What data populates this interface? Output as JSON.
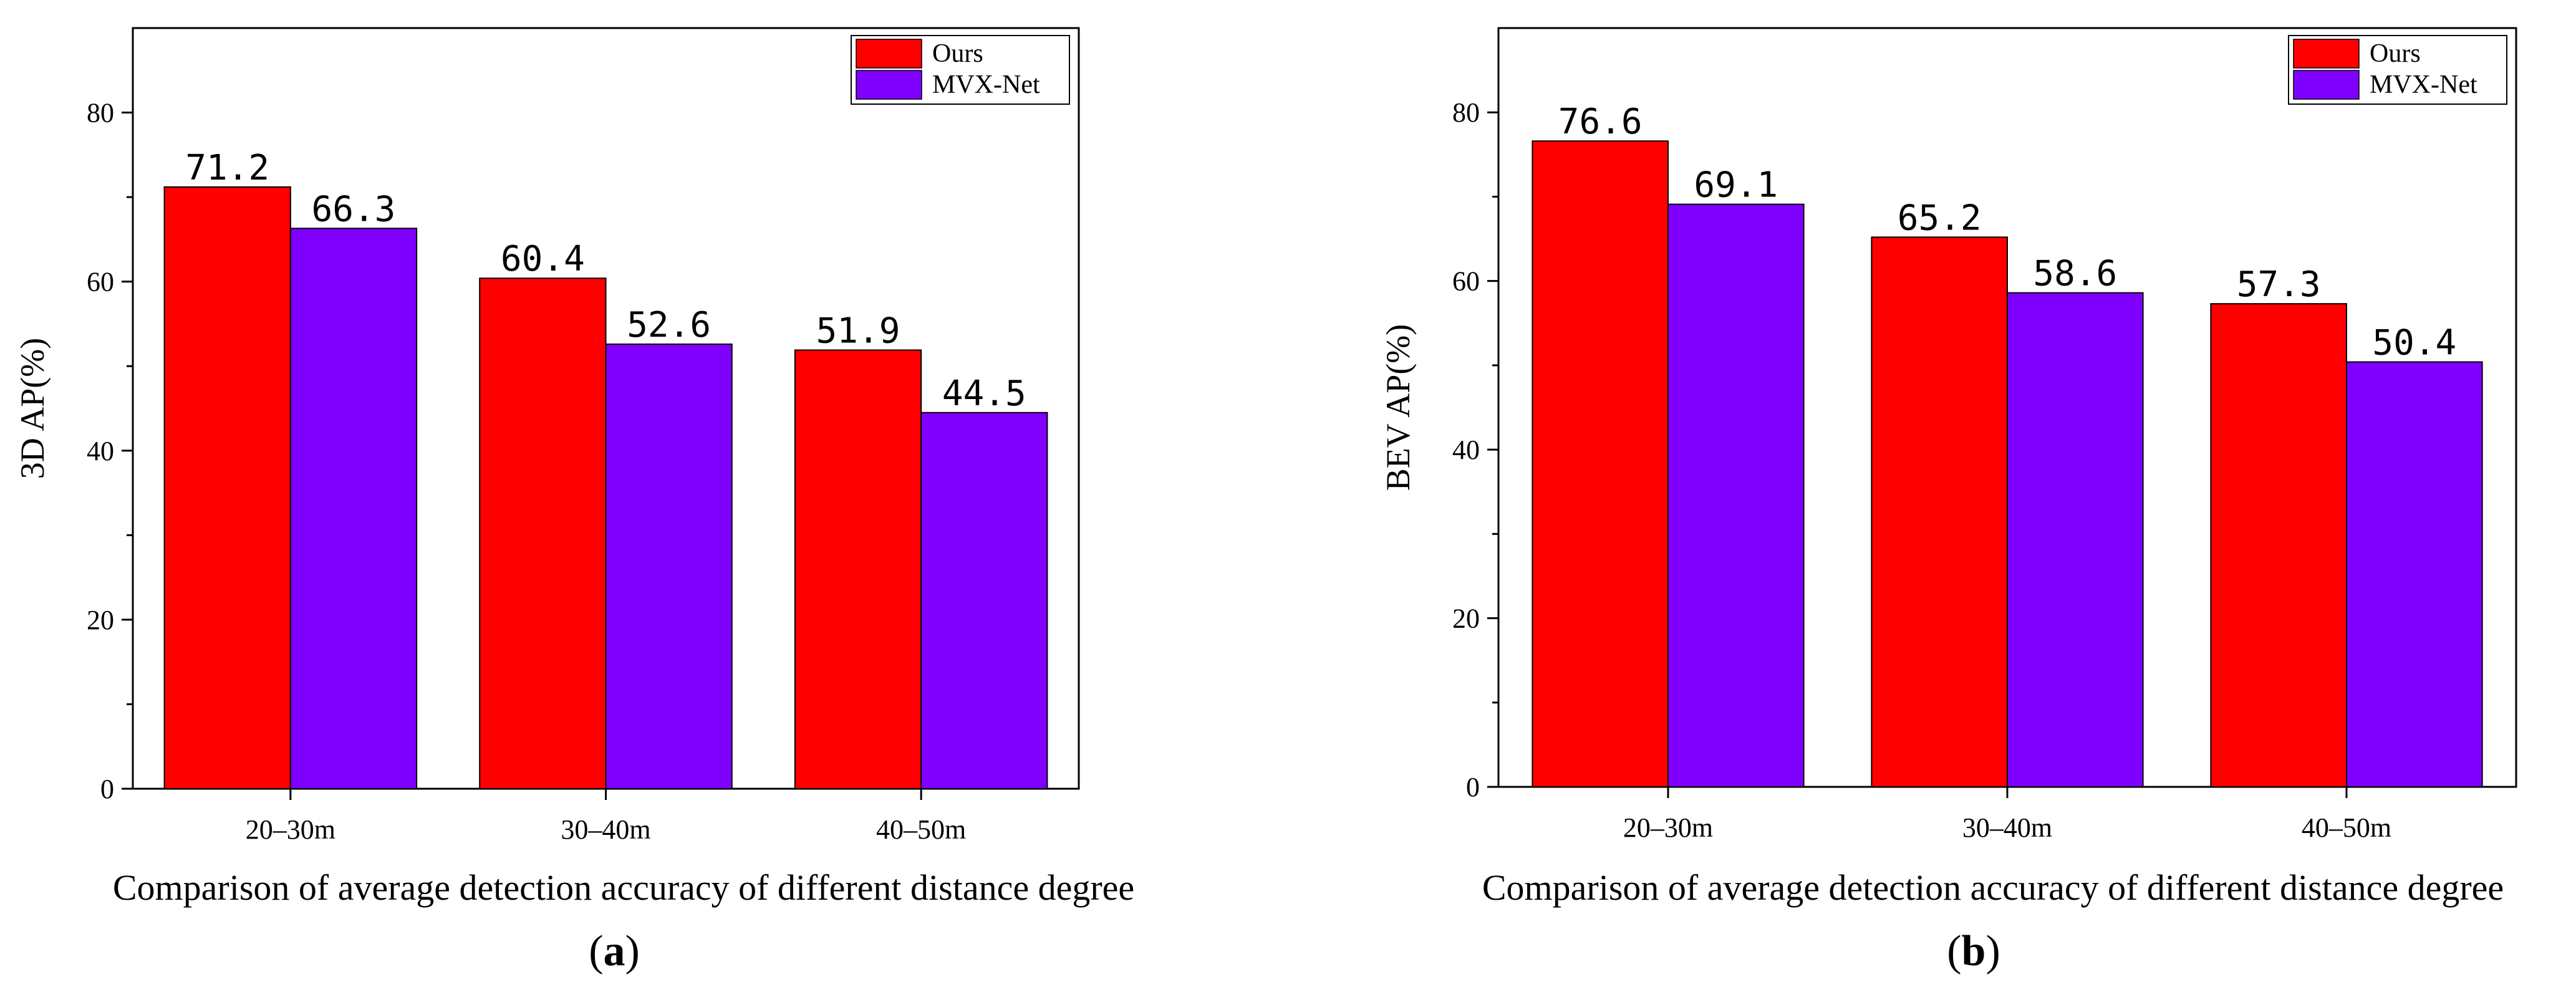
{
  "chart_data": [
    {
      "type": "bar",
      "panel": "(a)",
      "panel_letter": "a",
      "categories": [
        "20–30m",
        "30–40m",
        "40–50m"
      ],
      "series": [
        {
          "name": "Ours",
          "color": "#ff0000",
          "values": [
            71.2,
            60.4,
            51.9
          ]
        },
        {
          "name": "MVX-Net",
          "color": "#7f00ff",
          "values": [
            66.3,
            52.6,
            44.5
          ]
        }
      ],
      "value_labels": [
        [
          "71.2",
          "60.4",
          "51.9"
        ],
        [
          "66.3",
          "52.6",
          "44.5"
        ]
      ],
      "ylabel": "3D AP(%)",
      "xlabel": "Comparison of average detection accuracy of different distance degree",
      "ylim": [
        0,
        90
      ],
      "yticks": [
        0,
        20,
        40,
        60,
        80
      ],
      "ytick_labels": [
        "0",
        "20",
        "40",
        "60",
        "80"
      ],
      "legend": "top-right"
    },
    {
      "type": "bar",
      "panel": "(b)",
      "panel_letter": "b",
      "categories": [
        "20–30m",
        "30–40m",
        "40–50m"
      ],
      "series": [
        {
          "name": "Ours",
          "color": "#ff0000",
          "values": [
            76.6,
            65.2,
            57.3
          ]
        },
        {
          "name": "MVX-Net",
          "color": "#7f00ff",
          "values": [
            69.1,
            58.6,
            50.4
          ]
        }
      ],
      "value_labels": [
        [
          "76.6",
          "65.2",
          "57.3"
        ],
        [
          "69.1",
          "58.6",
          "50.4"
        ]
      ],
      "ylabel": "BEV AP(%)",
      "xlabel": "Comparison of average detection accuracy of different distance degree",
      "ylim": [
        0,
        90
      ],
      "yticks": [
        0,
        20,
        40,
        60,
        80
      ],
      "ytick_labels": [
        "0",
        "20",
        "40",
        "60",
        "80"
      ],
      "legend": "top-right"
    }
  ]
}
